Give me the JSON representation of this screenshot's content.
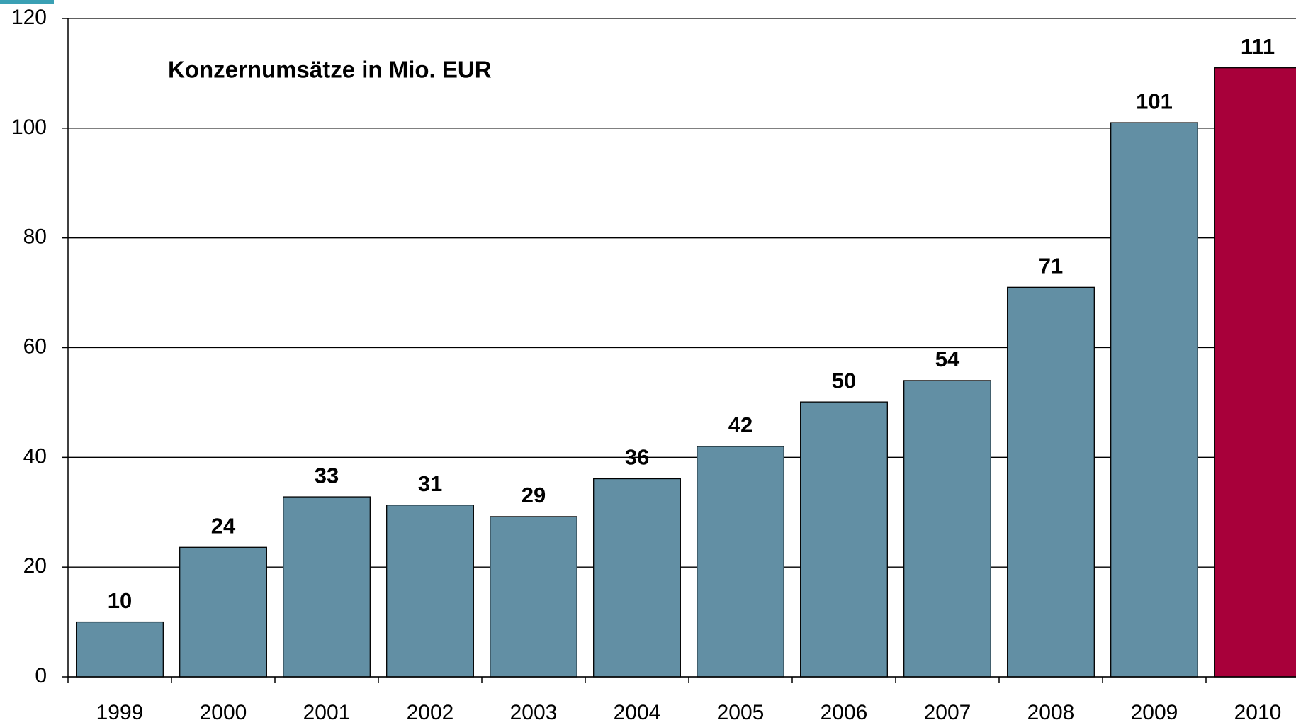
{
  "chart_data": {
    "type": "bar",
    "title": "Konzernumsätze in Mio. EUR",
    "categories": [
      "1999",
      "2000",
      "2001",
      "2002",
      "2003",
      "2004",
      "2005",
      "2006",
      "2007",
      "2008",
      "2009",
      "2010"
    ],
    "values": [
      10,
      23.6,
      32.8,
      31.3,
      29.2,
      36.1,
      42,
      50.1,
      54,
      71,
      101,
      111
    ],
    "value_labels": [
      "10",
      "24",
      "33",
      "31",
      "29",
      "36",
      "42",
      "50",
      "54",
      "71",
      "101",
      "111"
    ],
    "colors": [
      "#628fa4",
      "#628fa4",
      "#628fa4",
      "#628fa4",
      "#628fa4",
      "#628fa4",
      "#628fa4",
      "#628fa4",
      "#628fa4",
      "#628fa4",
      "#628fa4",
      "#a8003a"
    ],
    "ylim": [
      0,
      120
    ],
    "yticks": [
      0,
      20,
      40,
      60,
      80,
      100,
      120
    ],
    "grid": true
  }
}
